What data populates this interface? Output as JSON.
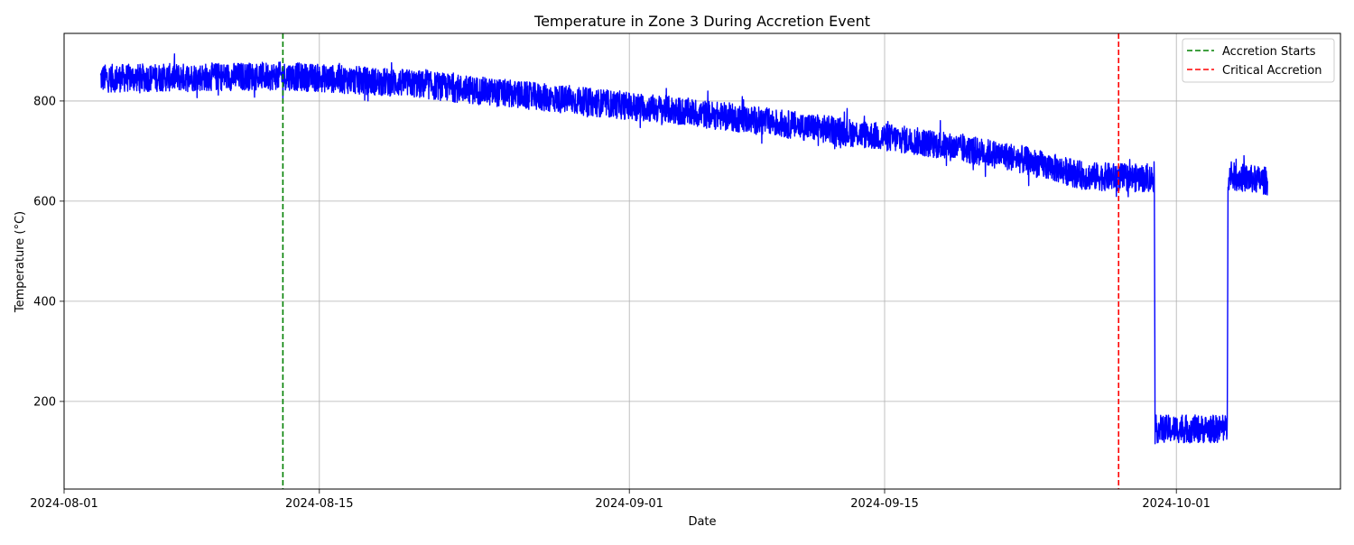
{
  "chart_data": {
    "type": "line",
    "title": "Temperature in Zone 3 During Accretion Event",
    "xlabel": "Date",
    "ylabel": "Temperature (°C)",
    "x_type": "date",
    "xlim": [
      "2024-08-01",
      "2024-10-10"
    ],
    "ylim": [
      25,
      935
    ],
    "grid": true,
    "legend_position": "top-right",
    "x_ticks": [
      {
        "date": "2024-08-01",
        "label": "2024-08-01"
      },
      {
        "date": "2024-08-15",
        "label": "2024-08-15"
      },
      {
        "date": "2024-09-01",
        "label": "2024-09-01"
      },
      {
        "date": "2024-09-15",
        "label": "2024-09-15"
      },
      {
        "date": "2024-10-01",
        "label": "2024-10-01"
      }
    ],
    "y_ticks": [
      200,
      400,
      600,
      800
    ],
    "series": [
      {
        "color": "#0000ff",
        "noise_amplitude": 28,
        "trend": [
          {
            "x": "2024-08-03 00:00",
            "y": 845
          },
          {
            "x": "2024-08-13 00:00",
            "y": 850
          },
          {
            "x": "2024-08-20 00:00",
            "y": 835
          },
          {
            "x": "2024-08-27 00:00",
            "y": 808
          },
          {
            "x": "2024-09-03 00:00",
            "y": 783
          },
          {
            "x": "2024-09-10 00:00",
            "y": 752
          },
          {
            "x": "2024-09-17 00:00",
            "y": 718
          },
          {
            "x": "2024-09-22 00:00",
            "y": 688
          },
          {
            "x": "2024-09-26 00:00",
            "y": 650
          },
          {
            "x": "2024-09-29 19:00",
            "y": 645
          },
          {
            "x": "2024-09-29 20:00",
            "y": 145
          },
          {
            "x": "2024-10-03 19:00",
            "y": 145
          },
          {
            "x": "2024-10-03 20:00",
            "y": 650
          },
          {
            "x": "2024-10-06 00:00",
            "y": 640
          }
        ]
      }
    ],
    "vlines": [
      {
        "x": "2024-08-13 00:00",
        "color": "#008000",
        "style": "dashed",
        "label": "Accretion Starts"
      },
      {
        "x": "2024-09-27 20:00",
        "color": "#ff0000",
        "style": "dashed",
        "label": "Critical Accretion"
      }
    ]
  }
}
